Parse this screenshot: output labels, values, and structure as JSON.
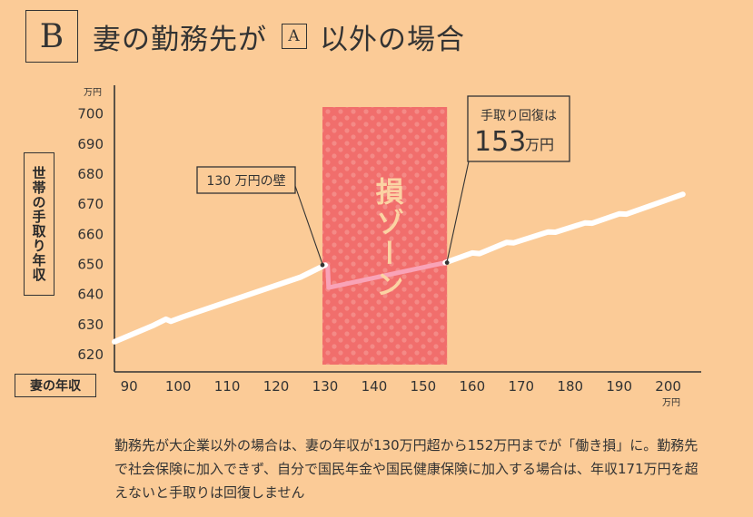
{
  "header": {
    "badge": "B",
    "title_before": "妻の勤務先が",
    "inline_badge": "A",
    "title_after": "以外の場合"
  },
  "chart_data": {
    "type": "line",
    "ylabel": "世帯の手取り年収",
    "xlabel": "妻の年収",
    "y_unit": "万円",
    "x_unit": "万円",
    "yticks": [
      620,
      630,
      640,
      650,
      660,
      670,
      680,
      690,
      700
    ],
    "ytick_labels": [
      "620",
      "630",
      "640",
      "650",
      "660",
      "670",
      "680",
      "690",
      "700"
    ],
    "xticks": [
      90,
      100,
      110,
      120,
      130,
      140,
      150,
      160,
      170,
      180,
      190,
      200
    ],
    "xtick_labels": [
      "90",
      "100",
      "110",
      "120",
      "130",
      "140",
      "150",
      "160",
      "170",
      "180",
      "190",
      "200"
    ],
    "ylim": [
      614,
      702
    ],
    "xlim": [
      87,
      206
    ],
    "series": [
      {
        "points": [
          [
            87,
            624
          ],
          [
            95,
            629.5
          ],
          [
            97.5,
            631.5
          ],
          [
            98.5,
            630.8
          ],
          [
            101,
            632.3
          ],
          [
            125,
            645.5
          ],
          [
            130,
            649.5
          ],
          [
            130.5,
            649.2
          ],
          [
            130.7,
            642
          ],
          [
            154.5,
            650.3
          ],
          [
            160,
            653.5
          ],
          [
            161.5,
            653.3
          ],
          [
            167,
            657
          ],
          [
            168.5,
            656.9
          ],
          [
            175.5,
            660.5
          ],
          [
            177,
            660.4
          ],
          [
            183,
            663.5
          ],
          [
            184.5,
            663.4
          ],
          [
            190,
            666.5
          ],
          [
            191.5,
            666.4
          ],
          [
            203,
            673
          ]
        ]
      }
    ],
    "shaded_region": {
      "x_start": 130,
      "x_end": 154.5,
      "label": "損ゾーン"
    },
    "annotations": [
      {
        "label": "130 万円の壁",
        "x": 130
      },
      {
        "label_line1": "手取り回復は",
        "value": "153",
        "unit": "万円",
        "x": 154.5
      }
    ],
    "colors": {
      "background": "#FBCB97",
      "line": "#FFFFFF",
      "zone": "#F16E6C",
      "zone_line": "#F9A3B7",
      "zone_text": "#FBD3A3"
    }
  },
  "note": "勤務先が大企業以外の場合は、妻の年収が130万円超から152万円までが「働き損」に。勤務先で社会保険に加入できず、自分で国民年金や国民健康保険に加入する場合は、年収171万円を超えないと手取りは回復しません"
}
